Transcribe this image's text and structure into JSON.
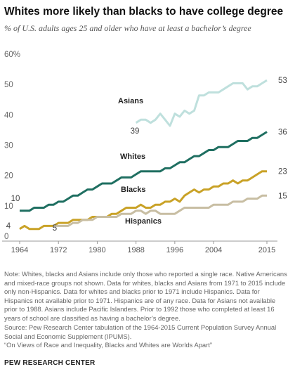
{
  "title": "Whites more likely than blacks to have college degree",
  "subtitle": "% of U.S. adults ages 25 and older who have at least a bachelor’s degree",
  "note": "Note: Whites, blacks and Asians include only those who reported a single race. Native Americans and mixed-race groups not shown. Data for whites, blacks and Asians from 1971 to 2015 include only non-Hispanics. Data for whites and blacks prior to 1971 include Hispanics. Data for Hispanics not available prior to 1971. Hispanics are of any race. Data for Asians not available prior to 1988. Asians include Pacific Islanders. Prior to 1992 those who completed at least 16 years of school are classified as having a bachelor’s degree.",
  "source": "Source: Pew Research Center tabulation of the 1964-2015 Current Population Survey Annual Social and Economic Supplement (IPUMS).",
  "report": "“On Views of Race and Inequality, Blacks and Whites are Worlds Apart”",
  "org": "PEW RESEARCH CENTER",
  "chart_data": {
    "type": "line",
    "ylim": [
      0,
      60
    ],
    "xlim": [
      1964,
      2015
    ],
    "yticks": [
      {
        "v": 0,
        "label": "0"
      },
      {
        "v": 10,
        "label": "10"
      },
      {
        "v": 20,
        "label": "20"
      },
      {
        "v": 30,
        "label": "30"
      },
      {
        "v": 40,
        "label": "40"
      },
      {
        "v": 50,
        "label": "50"
      },
      {
        "v": 60,
        "label": "60%"
      }
    ],
    "xticks": [
      {
        "v": 1964,
        "label": "1964"
      },
      {
        "v": 1972,
        "label": "1972"
      },
      {
        "v": 1980,
        "label": "1980"
      },
      {
        "v": 1988,
        "label": "1988"
      },
      {
        "v": 1996,
        "label": "1996"
      },
      {
        "v": 2004,
        "label": "2004"
      },
      {
        "v": 2015,
        "label": "2015"
      }
    ],
    "grid": false,
    "series": [
      {
        "name": "Asians",
        "color": "#bfe0dd",
        "start_label": "39",
        "end_label": "53",
        "x": [
          1988,
          1989,
          1990,
          1991,
          1992,
          1993,
          1994,
          1995,
          1996,
          1997,
          1998,
          1999,
          2000,
          2001,
          2002,
          2003,
          2004,
          2005,
          2006,
          2007,
          2008,
          2009,
          2010,
          2011,
          2012,
          2013,
          2014,
          2015
        ],
        "y": [
          39,
          40,
          40,
          39,
          40,
          42,
          40,
          38,
          42,
          41,
          43,
          42,
          43,
          48,
          48,
          49,
          49,
          49,
          50,
          51,
          52,
          52,
          52,
          50,
          51,
          51,
          52,
          53
        ]
      },
      {
        "name": "Whites",
        "color": "#1f6f61",
        "start_label": "10",
        "end_label": "36",
        "x": [
          1964,
          1965,
          1966,
          1967,
          1968,
          1969,
          1970,
          1971,
          1972,
          1973,
          1974,
          1975,
          1976,
          1977,
          1978,
          1979,
          1980,
          1981,
          1982,
          1983,
          1984,
          1985,
          1986,
          1987,
          1988,
          1989,
          1990,
          1991,
          1992,
          1993,
          1994,
          1995,
          1996,
          1997,
          1998,
          1999,
          2000,
          2001,
          2002,
          2003,
          2004,
          2005,
          2006,
          2007,
          2008,
          2009,
          2010,
          2011,
          2012,
          2013,
          2014,
          2015
        ],
        "y": [
          10,
          10,
          10,
          11,
          11,
          11,
          12,
          12,
          13,
          13,
          14,
          15,
          15,
          16,
          17,
          17,
          18,
          19,
          19,
          19,
          20,
          21,
          21,
          21,
          22,
          23,
          23,
          23,
          23,
          23,
          24,
          24,
          25,
          26,
          26,
          27,
          28,
          28,
          29,
          30,
          30,
          31,
          31,
          31,
          32,
          33,
          33,
          33,
          34,
          34,
          35,
          36
        ]
      },
      {
        "name": "Blacks",
        "color": "#c9a227",
        "start_label": "4",
        "end_label": "23",
        "x": [
          1964,
          1965,
          1966,
          1967,
          1968,
          1969,
          1970,
          1971,
          1972,
          1973,
          1974,
          1975,
          1976,
          1977,
          1978,
          1979,
          1980,
          1981,
          1982,
          1983,
          1984,
          1985,
          1986,
          1987,
          1988,
          1989,
          1990,
          1991,
          1992,
          1993,
          1994,
          1995,
          1996,
          1997,
          1998,
          1999,
          2000,
          2001,
          2002,
          2003,
          2004,
          2005,
          2006,
          2007,
          2008,
          2009,
          2010,
          2011,
          2012,
          2013,
          2014,
          2015
        ],
        "y": [
          4,
          5,
          4,
          4,
          4,
          5,
          5,
          5,
          6,
          6,
          6,
          7,
          7,
          7,
          7,
          8,
          8,
          8,
          8,
          9,
          9,
          10,
          11,
          11,
          11,
          12,
          11,
          11,
          12,
          12,
          13,
          13,
          14,
          13,
          15,
          16,
          17,
          16,
          17,
          17,
          18,
          18,
          19,
          19,
          20,
          19,
          20,
          20,
          21,
          22,
          23,
          23
        ]
      },
      {
        "name": "Hispanics",
        "color": "#c8bea3",
        "start_label": "5",
        "end_label": "15",
        "x": [
          1971,
          1972,
          1973,
          1974,
          1975,
          1976,
          1977,
          1978,
          1979,
          1980,
          1981,
          1982,
          1983,
          1984,
          1985,
          1986,
          1987,
          1988,
          1989,
          1990,
          1991,
          1992,
          1993,
          1994,
          1995,
          1996,
          1997,
          1998,
          1999,
          2000,
          2001,
          2002,
          2003,
          2004,
          2005,
          2006,
          2007,
          2008,
          2009,
          2010,
          2011,
          2012,
          2013,
          2014,
          2015
        ],
        "y": [
          5,
          5,
          5,
          5,
          6,
          6,
          7,
          7,
          7,
          8,
          8,
          8,
          8,
          8,
          9,
          9,
          9,
          10,
          10,
          9,
          10,
          10,
          9,
          9,
          9,
          9,
          10,
          11,
          11,
          11,
          11,
          11,
          11,
          12,
          12,
          12,
          12,
          13,
          13,
          13,
          14,
          14,
          14,
          15,
          15
        ]
      }
    ]
  }
}
